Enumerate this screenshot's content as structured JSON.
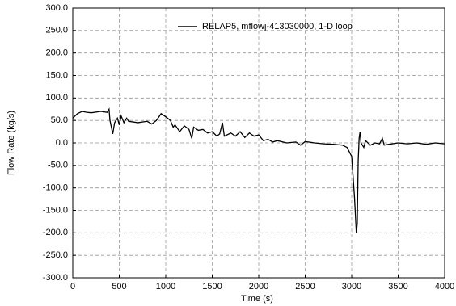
{
  "chart_data": {
    "type": "line",
    "xlabel": "Time (s)",
    "ylabel": "Flow Rate (kg/s)",
    "x": [
      0,
      50,
      100,
      150,
      200,
      300,
      370,
      390,
      400,
      430,
      450,
      480,
      500,
      520,
      550,
      580,
      600,
      700,
      800,
      850,
      900,
      950,
      1000,
      1050,
      1080,
      1100,
      1150,
      1200,
      1250,
      1280,
      1300,
      1350,
      1400,
      1450,
      1500,
      1550,
      1580,
      1610,
      1630,
      1700,
      1750,
      1800,
      1850,
      1900,
      1950,
      2000,
      2050,
      2100,
      2150,
      2200,
      2300,
      2400,
      2450,
      2500,
      2600,
      2700,
      2800,
      2900,
      2950,
      3000,
      3030,
      3050,
      3060,
      3070,
      3080,
      3090,
      3100,
      3130,
      3150,
      3200,
      3250,
      3300,
      3330,
      3350,
      3400,
      3500,
      3600,
      3700,
      3800,
      3900,
      4000
    ],
    "series": [
      {
        "name": "RELAP5, mflowj-413030000, 1-D loop",
        "color": "#000000",
        "values": [
          55,
          65,
          70,
          68,
          67,
          70,
          68,
          75,
          50,
          20,
          45,
          55,
          40,
          60,
          45,
          55,
          48,
          45,
          48,
          42,
          50,
          65,
          58,
          50,
          35,
          40,
          25,
          38,
          30,
          10,
          35,
          28,
          30,
          22,
          25,
          15,
          20,
          45,
          15,
          22,
          15,
          25,
          12,
          22,
          15,
          18,
          5,
          8,
          2,
          5,
          0,
          2,
          -5,
          3,
          0,
          -2,
          -3,
          -5,
          -10,
          -30,
          -120,
          -200,
          -180,
          -40,
          10,
          25,
          0,
          -10,
          5,
          -5,
          0,
          -2,
          10,
          -5,
          -3,
          0,
          -2,
          0,
          -3,
          0,
          -2
        ]
      }
    ],
    "xlim": [
      0,
      4000
    ],
    "xticks": [
      0,
      500,
      1000,
      1500,
      2000,
      2500,
      3000,
      3500,
      4000
    ],
    "ylim": [
      -300,
      300
    ],
    "yticks": [
      {
        "value": -300,
        "label": "-300.0"
      },
      {
        "value": -250,
        "label": "-250.0"
      },
      {
        "value": -200,
        "label": "-200.0"
      },
      {
        "value": -150,
        "label": "-150.0"
      },
      {
        "value": -100,
        "label": "-100.0"
      },
      {
        "value": -50,
        "label": "-50.0"
      },
      {
        "value": 0,
        "label": "0.0"
      },
      {
        "value": 50,
        "label": "50.0"
      },
      {
        "value": 100,
        "label": "100.0"
      },
      {
        "value": 150,
        "label": "150.0"
      },
      {
        "value": 200,
        "label": "200.0"
      },
      {
        "value": 250,
        "label": "250.0"
      },
      {
        "value": 300,
        "label": "300.0"
      }
    ],
    "grid": true,
    "legend": "upper center"
  }
}
